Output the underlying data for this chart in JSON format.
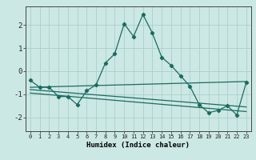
{
  "title": "",
  "xlabel": "Humidex (Indice chaleur)",
  "background_color": "#cce8e4",
  "grid_color": "#aacfca",
  "line_color": "#1a6b60",
  "xlim": [
    -0.5,
    23.5
  ],
  "ylim": [
    -2.6,
    2.8
  ],
  "xticks": [
    0,
    1,
    2,
    3,
    4,
    5,
    6,
    7,
    8,
    9,
    10,
    11,
    12,
    13,
    14,
    15,
    16,
    17,
    18,
    19,
    20,
    21,
    22,
    23
  ],
  "yticks": [
    -2,
    -1,
    0,
    1,
    2
  ],
  "line1_x": [
    0,
    1,
    2,
    3,
    4,
    5,
    6,
    7,
    8,
    9,
    10,
    11,
    12,
    13,
    14,
    15,
    16,
    17,
    18,
    19,
    20,
    21,
    22,
    23
  ],
  "line1_y": [
    -0.4,
    -0.7,
    -0.7,
    -1.1,
    -1.1,
    -1.45,
    -0.85,
    -0.6,
    0.35,
    0.75,
    2.05,
    1.5,
    2.45,
    1.65,
    0.6,
    0.25,
    -0.2,
    -0.65,
    -1.45,
    -1.8,
    -1.7,
    -1.5,
    -1.9,
    -0.5
  ],
  "line2_x": [
    0,
    23
  ],
  "line2_y": [
    -0.7,
    -0.45
  ],
  "line3_x": [
    0,
    23
  ],
  "line3_y": [
    -0.8,
    -1.55
  ],
  "line4_x": [
    0,
    23
  ],
  "line4_y": [
    -0.95,
    -1.75
  ]
}
